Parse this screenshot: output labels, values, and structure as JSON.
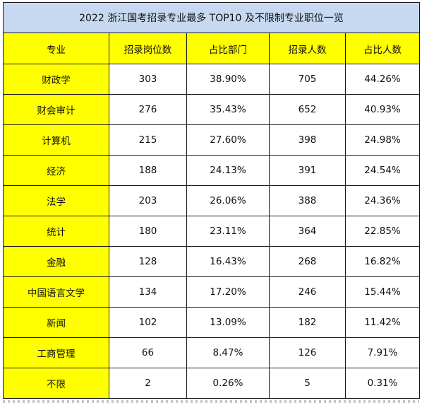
{
  "table": {
    "title": "2022 浙江国考招录专业最多 TOP10 及不限制专业职位一览",
    "headers": [
      "专业",
      "招录岗位数",
      "占比部门",
      "招录人数",
      "占比人数"
    ],
    "rows": [
      {
        "major": "财政学",
        "positions": "303",
        "dept_ratio": "38.90%",
        "hires": "705",
        "hire_ratio": "44.26%"
      },
      {
        "major": "财会审计",
        "positions": "276",
        "dept_ratio": "35.43%",
        "hires": "652",
        "hire_ratio": "40.93%"
      },
      {
        "major": "计算机",
        "positions": "215",
        "dept_ratio": "27.60%",
        "hires": "398",
        "hire_ratio": "24.98%"
      },
      {
        "major": "经济",
        "positions": "188",
        "dept_ratio": "24.13%",
        "hires": "391",
        "hire_ratio": "24.54%"
      },
      {
        "major": "法学",
        "positions": "203",
        "dept_ratio": "26.06%",
        "hires": "388",
        "hire_ratio": "24.36%"
      },
      {
        "major": "统计",
        "positions": "180",
        "dept_ratio": "23.11%",
        "hires": "364",
        "hire_ratio": "22.85%"
      },
      {
        "major": "金融",
        "positions": "128",
        "dept_ratio": "16.43%",
        "hires": "268",
        "hire_ratio": "16.82%"
      },
      {
        "major": "中国语言文学",
        "positions": "134",
        "dept_ratio": "17.20%",
        "hires": "246",
        "hire_ratio": "15.44%"
      },
      {
        "major": "新闻",
        "positions": "102",
        "dept_ratio": "13.09%",
        "hires": "182",
        "hire_ratio": "11.42%"
      },
      {
        "major": "工商管理",
        "positions": "66",
        "dept_ratio": "8.47%",
        "hires": "126",
        "hire_ratio": "7.91%"
      },
      {
        "major": "不限",
        "positions": "2",
        "dept_ratio": "0.26%",
        "hires": "5",
        "hire_ratio": "0.31%"
      }
    ]
  },
  "colors": {
    "title_bg": "#c6d9f1",
    "highlight": "#ffff00",
    "border": "#1a1a1a"
  }
}
